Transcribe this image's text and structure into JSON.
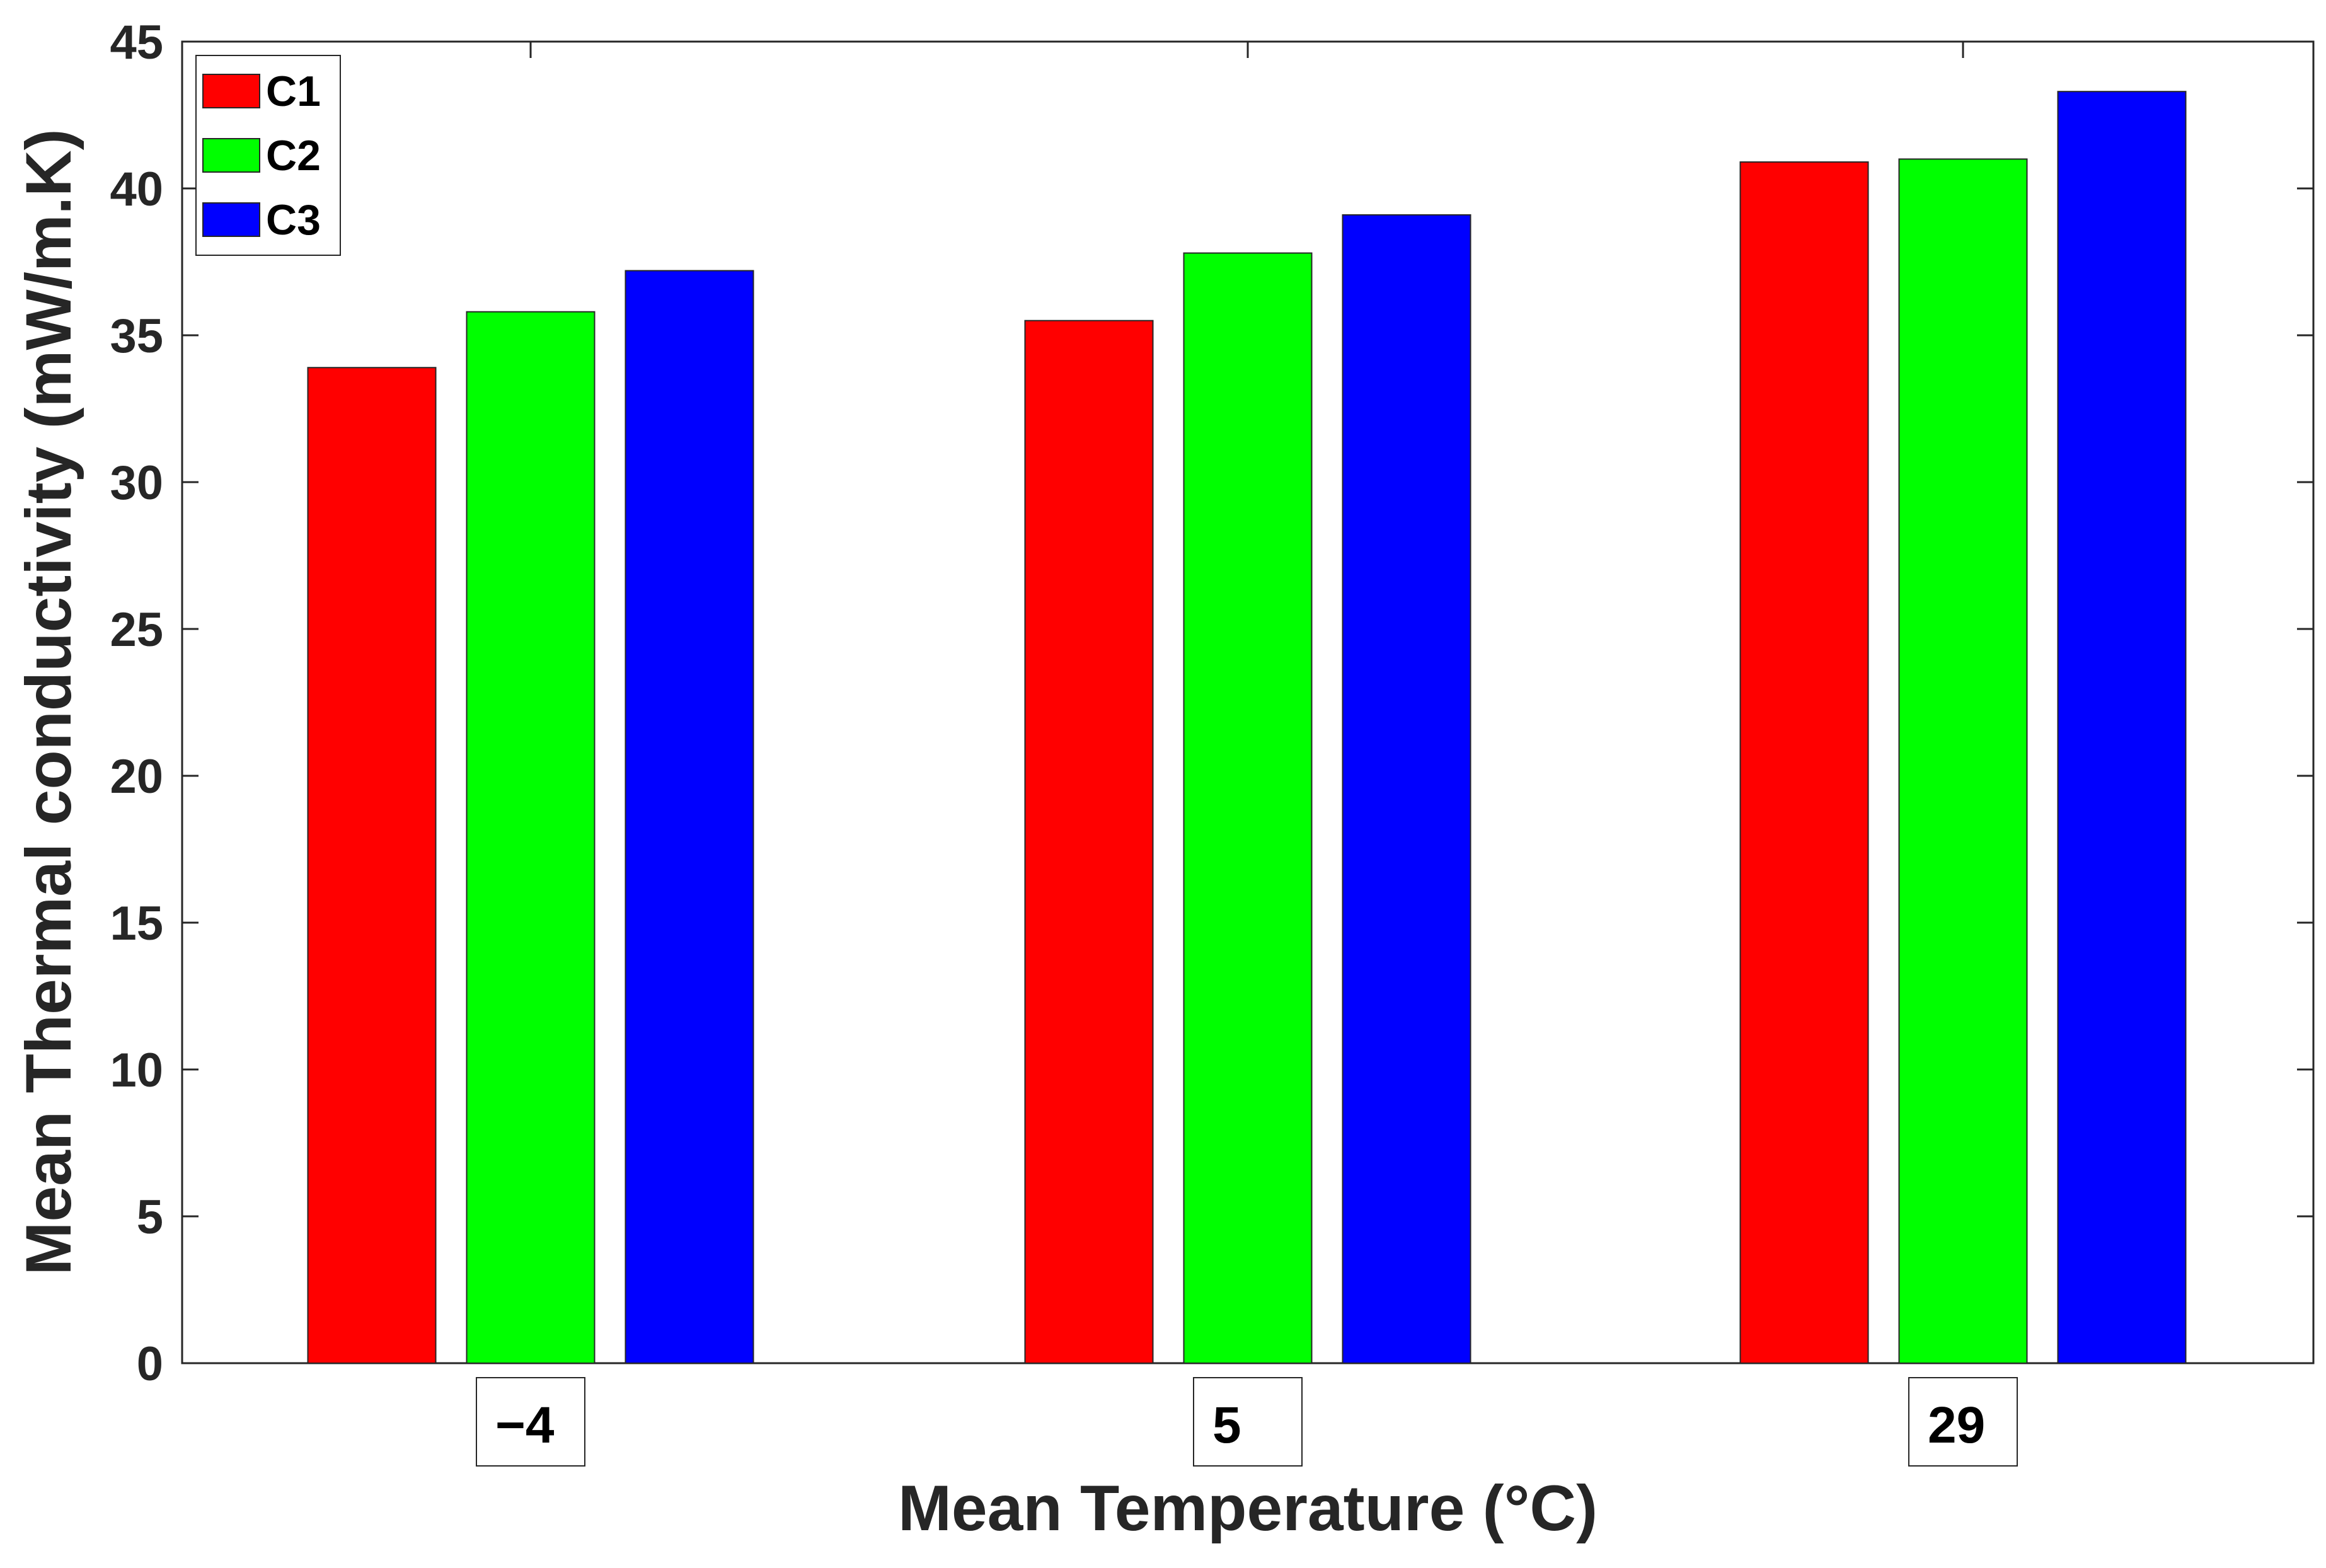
{
  "chart_data": {
    "type": "bar",
    "title": "",
    "xlabel": "Mean Temperature (°C)",
    "ylabel": "Mean Thermal conductivity (mW/m.K)",
    "categories": [
      "−4",
      "5",
      "29"
    ],
    "series": [
      {
        "name": "C1",
        "color": "#ff0000",
        "values": [
          33.9,
          35.5,
          40.9
        ]
      },
      {
        "name": "C2",
        "color": "#00ff00",
        "values": [
          35.8,
          37.8,
          41.0
        ]
      },
      {
        "name": "C3",
        "color": "#0000ff",
        "values": [
          37.2,
          39.1,
          43.3
        ]
      }
    ],
    "ylim": [
      0,
      45
    ],
    "yticks": [
      0,
      5,
      10,
      15,
      20,
      25,
      30,
      35,
      40,
      45
    ],
    "grid": false,
    "legend_position": "top-left"
  }
}
